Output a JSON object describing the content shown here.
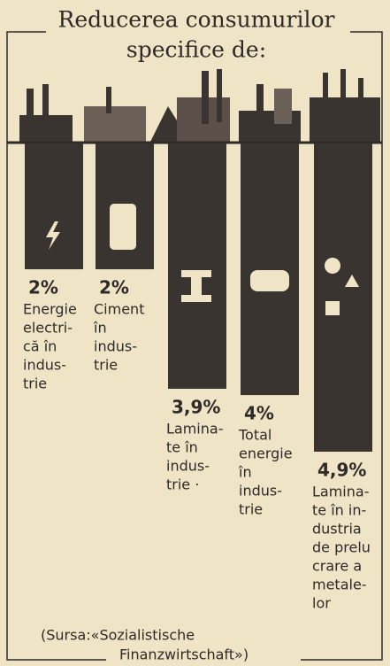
{
  "chart_data": {
    "type": "hanging-bar",
    "title": [
      "Reducerea consumurilor",
      "specifice de:"
    ],
    "categories": [
      [
        "Energie",
        "electri-",
        "că în",
        "indus-",
        "trie"
      ],
      [
        "Ciment",
        "în",
        "indus-",
        "trie"
      ],
      [
        "Lamina-",
        "te în",
        "indus-",
        "trie ·"
      ],
      [
        "Total",
        "energie",
        "în",
        "indus-",
        "trie"
      ],
      [
        "Lamina-",
        "te în in-",
        "dustria",
        "de prelu",
        "crare a",
        "metale-",
        "lor"
      ]
    ],
    "values": [
      2,
      2,
      3.9,
      4,
      4.9
    ],
    "value_labels": [
      "2%",
      "2%",
      "3,9%",
      "4%",
      "4,9%"
    ],
    "color": "#3a3431",
    "source": [
      "(Sursa:«Sozialistische",
      "Finanzwirtschaft»)"
    ]
  }
}
